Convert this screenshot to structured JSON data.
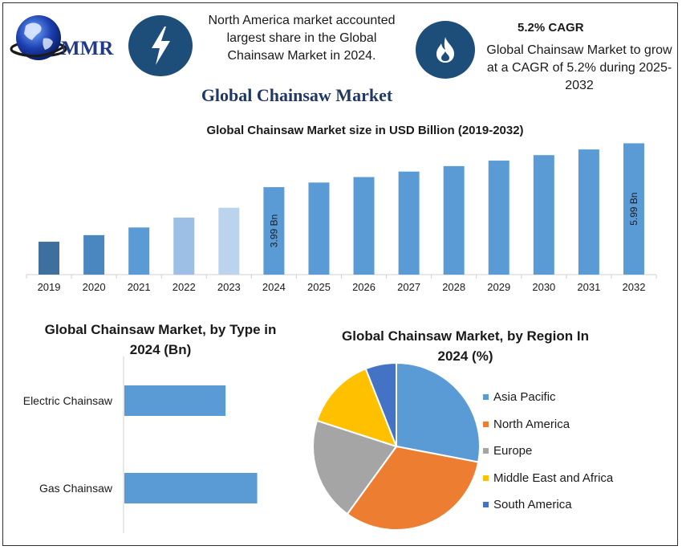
{
  "brand": {
    "logo_text": "MMR"
  },
  "header": {
    "note1": "North America market accounted largest share in the Global Chainsaw Market in 2024.",
    "cagr_title": "5.2% CAGR",
    "note2": "Global Chainsaw Market to grow at a CAGR of 5.2% during 2025-2032",
    "icons": [
      "lightning-bolt-icon",
      "flame-icon"
    ],
    "icon_bg": "#1d4e79"
  },
  "main_title": "Global Chainsaw Market",
  "colors": {
    "bar_dark": "#3f6f9e",
    "bar_mid": "#4a86c0",
    "bar_main": "#5b9bd5",
    "bar_light1": "#9dbfe6",
    "bar_light2": "#bcd3ee",
    "title_navy": "#1f3864"
  },
  "chart_data": [
    {
      "type": "bar",
      "title": "Global Chainsaw Market size in USD Billion (2019-2032)",
      "categories": [
        "2019",
        "2020",
        "2021",
        "2022",
        "2023",
        "2024",
        "2025",
        "2026",
        "2027",
        "2028",
        "2029",
        "2030",
        "2031",
        "2032"
      ],
      "values": [
        1.5,
        1.8,
        2.15,
        2.6,
        3.05,
        3.99,
        4.2,
        4.45,
        4.7,
        4.95,
        5.2,
        5.45,
        5.71,
        5.99
      ],
      "bar_colors": [
        "#3f6f9e",
        "#4a86c0",
        "#5b9bd5",
        "#9dbfe6",
        "#bcd3ee",
        "#5b9bd5",
        "#5b9bd5",
        "#5b9bd5",
        "#5b9bd5",
        "#5b9bd5",
        "#5b9bd5",
        "#5b9bd5",
        "#5b9bd5",
        "#5b9bd5"
      ],
      "data_labels": {
        "2024": "3.99 Bn",
        "2032": "5.99 Bn"
      },
      "ylim": [
        0,
        6.3
      ],
      "grid": false
    },
    {
      "type": "bar",
      "orientation": "horizontal",
      "title": "Global Chainsaw Market, by Type in 2024 (Bn)",
      "categories": [
        "Electric Chainsaw",
        "Gas Chainsaw"
      ],
      "values": [
        1.6,
        2.1
      ],
      "color": "#5b9bd5",
      "xlim": [
        0,
        2.6
      ]
    },
    {
      "type": "pie",
      "title": "Global Chainsaw Market, by Region In 2024 (%)",
      "labels": [
        "Asia Pacific",
        "North America",
        "Europe",
        "Middle East and Africa",
        "South America"
      ],
      "values": [
        28,
        32,
        20,
        14,
        6
      ],
      "colors": [
        "#5b9bd5",
        "#ed7d31",
        "#a5a5a5",
        "#ffc000",
        "#4472c4"
      ],
      "legend_position": "right"
    }
  ]
}
